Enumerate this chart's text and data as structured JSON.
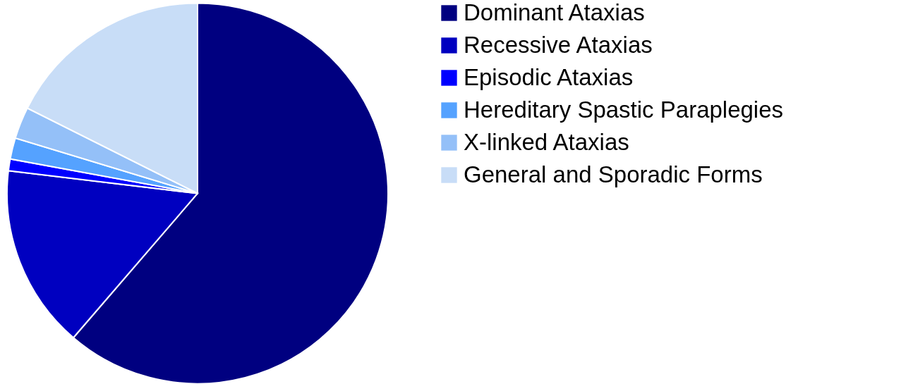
{
  "chart_data": {
    "type": "pie",
    "categories": [
      "Dominant Ataxias",
      "Recessive Ataxias",
      "Episodic Ataxias",
      "Hereditary Spastic Paraplegies",
      "X-linked Ataxias",
      "General and Sporadic Forms"
    ],
    "values": [
      61.3,
      15.6,
      1.0,
      1.8,
      2.7,
      17.6
    ],
    "colors": [
      "#000080",
      "#0000c0",
      "#0000ff",
      "#55a2ff",
      "#94c0f8",
      "#c8ddf7"
    ],
    "legend": "top right"
  }
}
